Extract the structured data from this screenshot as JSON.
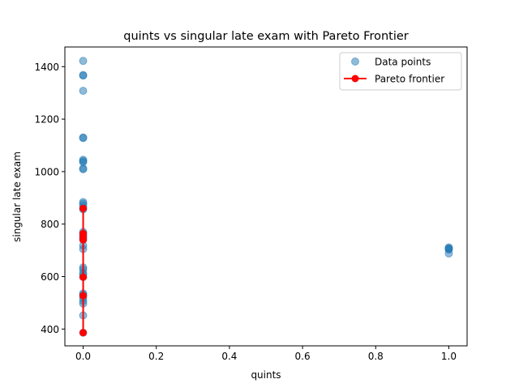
{
  "chart_data": {
    "type": "scatter",
    "title": "quints vs singular late exam with Pareto Frontier",
    "xlabel": "quints",
    "ylabel": "singular late exam",
    "xlim": [
      -0.05,
      1.05
    ],
    "ylim": [
      336,
      1475
    ],
    "x_ticks": [
      "0.0",
      "0.2",
      "0.4",
      "0.6",
      "0.8",
      "1.0"
    ],
    "x_tick_values": [
      0,
      0.2,
      0.4,
      0.6,
      0.8,
      1.0
    ],
    "y_ticks": [
      "400",
      "600",
      "800",
      "1000",
      "1200",
      "1400"
    ],
    "y_tick_values": [
      400,
      600,
      800,
      1000,
      1200,
      1400
    ],
    "grid": false,
    "legend_position": "top-right",
    "series": [
      {
        "name": "Data points",
        "kind": "scatter",
        "color": "#1f77b4",
        "points": [
          [
            0,
            1422
          ],
          [
            0,
            1368
          ],
          [
            0,
            1366
          ],
          [
            0,
            1308
          ],
          [
            0,
            1130
          ],
          [
            0,
            1128
          ],
          [
            0,
            1045
          ],
          [
            0,
            1040
          ],
          [
            0,
            1036
          ],
          [
            0,
            1012
          ],
          [
            0,
            1009
          ],
          [
            0,
            884
          ],
          [
            0,
            878
          ],
          [
            0,
            870
          ],
          [
            0,
            860
          ],
          [
            0,
            856
          ],
          [
            0,
            770
          ],
          [
            0,
            764
          ],
          [
            0,
            760
          ],
          [
            0,
            752
          ],
          [
            0,
            745
          ],
          [
            0,
            740
          ],
          [
            0,
            718
          ],
          [
            0,
            705
          ],
          [
            0,
            635
          ],
          [
            0,
            627
          ],
          [
            0,
            614
          ],
          [
            0,
            607
          ],
          [
            0,
            598
          ],
          [
            0,
            536
          ],
          [
            0,
            531
          ],
          [
            0,
            527
          ],
          [
            0,
            518
          ],
          [
            0,
            507
          ],
          [
            0,
            497
          ],
          [
            0,
            452
          ],
          [
            0,
            386
          ],
          [
            1,
            711
          ],
          [
            1,
            708
          ],
          [
            1,
            705
          ],
          [
            1,
            703
          ],
          [
            1,
            688
          ]
        ]
      },
      {
        "name": "Pareto frontier",
        "kind": "line",
        "color": "#ff0000",
        "points": [
          [
            0,
            860
          ],
          [
            0,
            764
          ],
          [
            0,
            752
          ],
          [
            0,
            740
          ],
          [
            0,
            598
          ],
          [
            0,
            527
          ],
          [
            0,
            386
          ]
        ]
      }
    ]
  }
}
